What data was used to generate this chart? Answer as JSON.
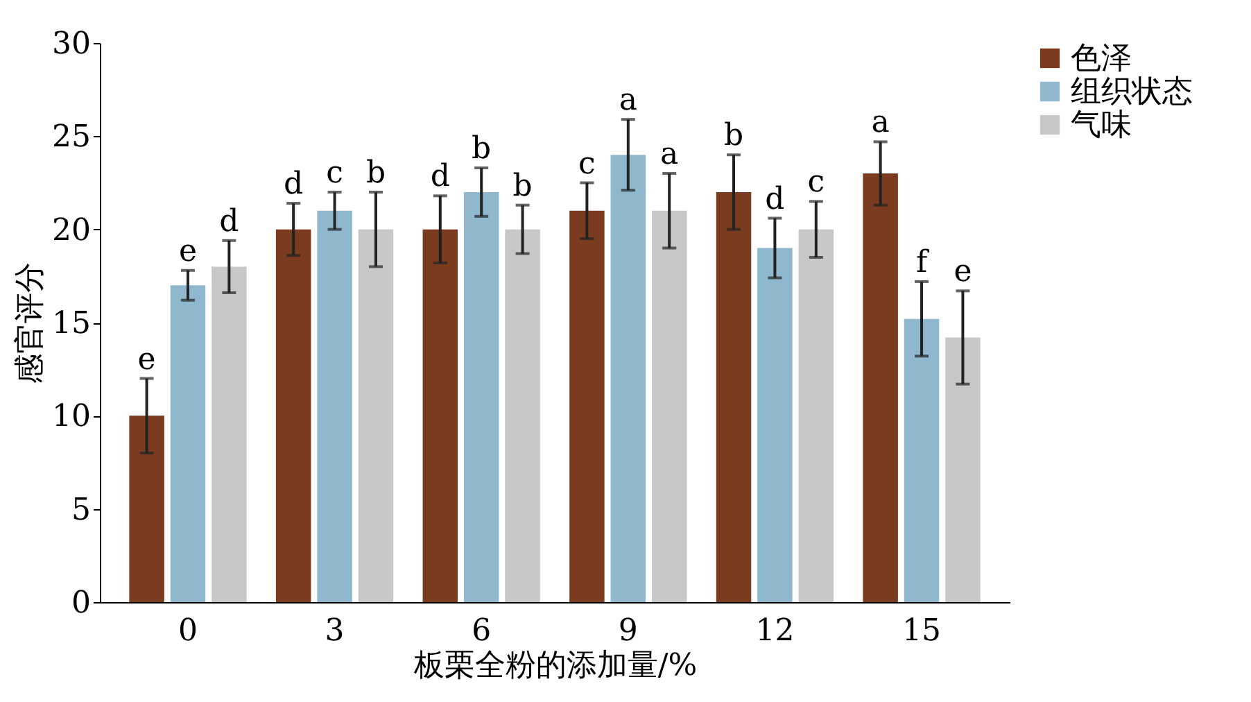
{
  "chart_data": {
    "type": "bar",
    "xlabel": "板栗全粉的添加量/%",
    "ylabel": "感官评分",
    "categories": [
      "0",
      "3",
      "6",
      "9",
      "12",
      "15"
    ],
    "series": [
      {
        "name": "色泽",
        "color": "#7a3b1e",
        "values": [
          10,
          20,
          20,
          21,
          22,
          23
        ],
        "errors": [
          2.0,
          1.4,
          1.8,
          1.5,
          2.0,
          1.7
        ]
      },
      {
        "name": "组织状态",
        "color": "#8fb8cf",
        "values": [
          17,
          21,
          22,
          24,
          19,
          15.2
        ],
        "errors": [
          0.8,
          1.0,
          1.3,
          1.9,
          1.6,
          2.0
        ]
      },
      {
        "name": "气味",
        "color": "#c8c8c8",
        "values": [
          18,
          20,
          20,
          21,
          20,
          14.2
        ],
        "errors": [
          1.4,
          2.0,
          1.3,
          2.0,
          1.5,
          2.5
        ]
      }
    ],
    "ylim": [
      0,
      30
    ],
    "yticks": [
      0,
      5,
      10,
      15,
      20,
      25,
      30
    ],
    "grid": false,
    "legend": "right",
    "annotations": [
      "e",
      "e",
      "d",
      "d",
      "c",
      "b",
      "d",
      "b",
      "b",
      "c",
      "a",
      "a",
      "b",
      "d",
      "c",
      "a",
      "f",
      "e"
    ]
  }
}
